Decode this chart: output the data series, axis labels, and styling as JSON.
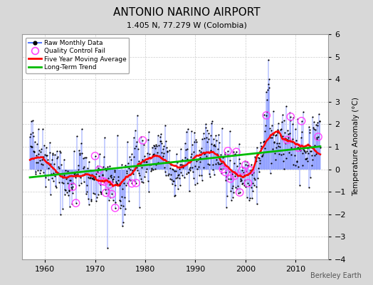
{
  "title": "ANTONIO NARINO AIRPORT",
  "subtitle": "1.405 N, 77.279 W (Colombia)",
  "ylabel": "Temperature Anomaly (°C)",
  "watermark": "Berkeley Earth",
  "xlim": [
    1955.5,
    2016.5
  ],
  "ylim": [
    -4,
    6
  ],
  "yticks": [
    -4,
    -3,
    -2,
    -1,
    0,
    1,
    2,
    3,
    4,
    5,
    6
  ],
  "xticks": [
    1960,
    1970,
    1980,
    1990,
    2000,
    2010
  ],
  "bg_color": "#d8d8d8",
  "plot_bg_color": "#ffffff",
  "line_color": "#6688ff",
  "dot_color": "#000000",
  "ma_color": "#ff0000",
  "trend_color": "#00bb00",
  "qc_color": "#ff44ff",
  "title_fontsize": 11,
  "subtitle_fontsize": 8,
  "seed": 42
}
